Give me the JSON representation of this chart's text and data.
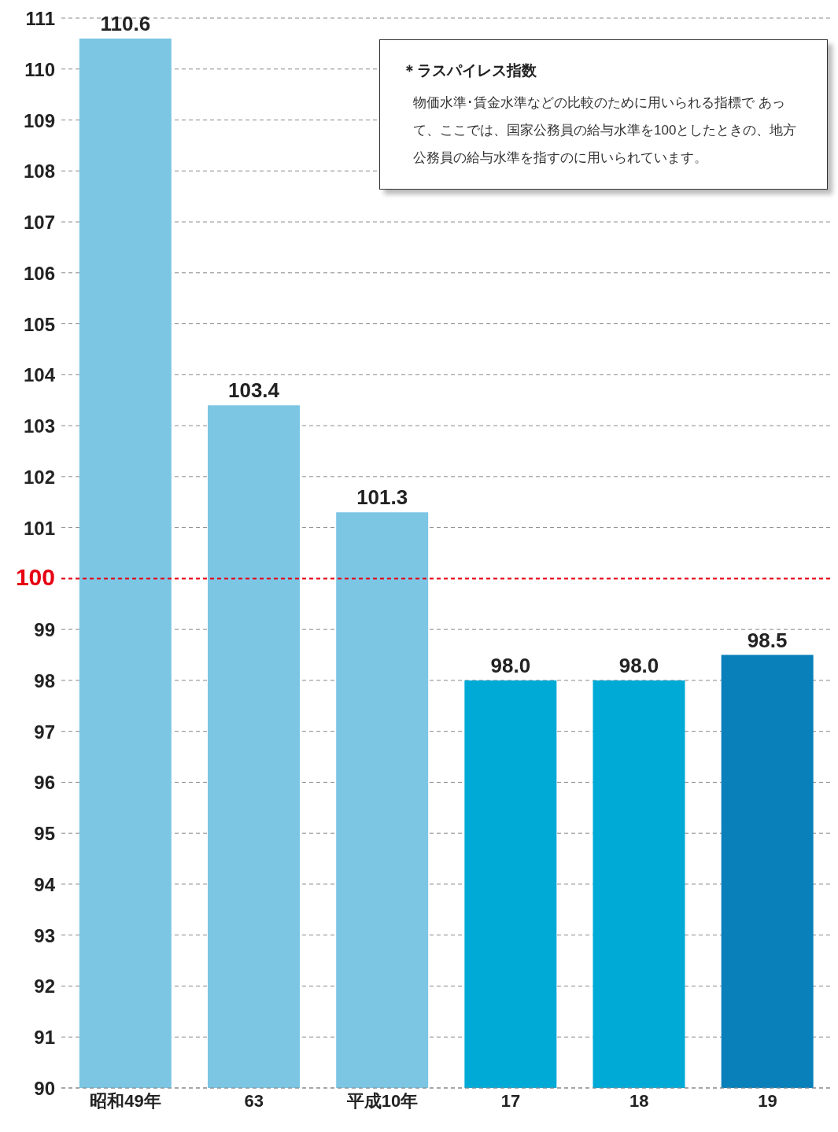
{
  "chart_data": {
    "type": "bar",
    "categories": [
      "昭和49年",
      "63",
      "平成10年",
      "17",
      "18",
      "19"
    ],
    "values": [
      110.6,
      103.4,
      101.3,
      98.0,
      98.0,
      98.5
    ],
    "colors": [
      "#7cc6e4",
      "#7cc6e4",
      "#7cc6e4",
      "#00aad6",
      "#00aad6",
      "#0a80ba"
    ],
    "value_labels": [
      "110.6",
      "103.4",
      "101.3",
      "98.0",
      "98.0",
      "98.5"
    ],
    "ylim": [
      90,
      111
    ],
    "yticks": [
      90,
      91,
      92,
      93,
      94,
      95,
      96,
      97,
      98,
      99,
      100,
      101,
      102,
      103,
      104,
      105,
      106,
      107,
      108,
      109,
      110,
      111
    ],
    "grid": "y",
    "ref_lines": [
      {
        "axis": "y",
        "value": 100,
        "color": "#e60012",
        "line_style": "dashed"
      }
    ],
    "annotations": [
      "＊ラスパイレス指数",
      "物価水準･賃金水準などの比較のために用いられる指標で あって、ここでは、国家公務員の給与水準を100としたときの、地方公務員の給与水準を指すのに用いられています。"
    ]
  }
}
